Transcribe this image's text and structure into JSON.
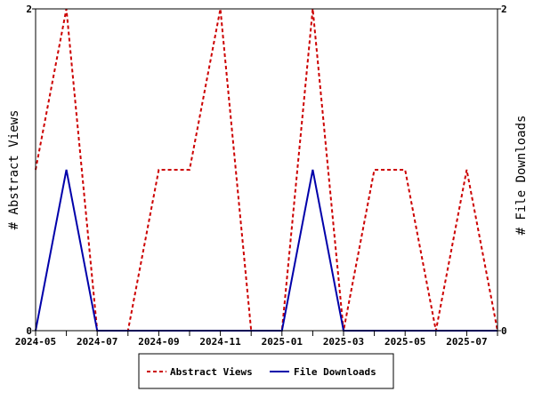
{
  "chart_data": {
    "type": "line",
    "x": [
      "2024-05",
      "2024-06",
      "2024-07",
      "2024-08",
      "2024-09",
      "2024-10",
      "2024-11",
      "2024-12",
      "2025-01",
      "2025-02",
      "2025-03",
      "2025-04",
      "2025-05",
      "2025-06",
      "2025-07",
      "2025-08"
    ],
    "x_tick_labels": [
      "2024-05",
      "2024-07",
      "2024-09",
      "2024-11",
      "2025-01",
      "2025-03",
      "2025-05",
      "2025-07"
    ],
    "series": [
      {
        "name": "Abstract Views",
        "axis": "left",
        "color": "#cc0000",
        "line_style": "dashed",
        "values": [
          1,
          2,
          0,
          0,
          1,
          1,
          2,
          0,
          0,
          2,
          0,
          1,
          1,
          0,
          1,
          0
        ]
      },
      {
        "name": "File Downloads",
        "axis": "right",
        "color": "#0000aa",
        "line_style": "solid",
        "values": [
          0,
          1,
          0,
          0,
          0,
          0,
          0,
          0,
          0,
          1,
          0,
          0,
          0,
          0,
          0,
          0
        ]
      }
    ],
    "ylabel_left": "# Abstract Views",
    "ylabel_right": "# File Downloads",
    "ylim_left": [
      0,
      2
    ],
    "ylim_right": [
      0,
      2
    ],
    "y_tick_labels_left": [
      "0",
      "2"
    ],
    "y_tick_labels_right": [
      "0",
      "2"
    ],
    "grid": false,
    "legend_position": "bottom-center"
  }
}
